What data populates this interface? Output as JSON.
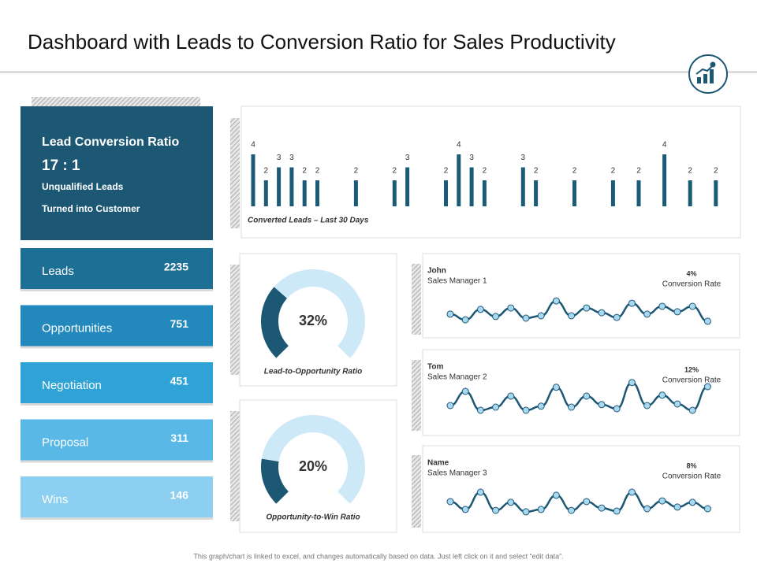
{
  "title": "Dashboard with Leads to Conversion Ratio for Sales Productivity",
  "summary": {
    "title": "Lead Conversion Ratio",
    "ratio": "17 : 1",
    "line1": "Unqualified Leads",
    "line2": "Turned into Customer",
    "color": "#1c5774"
  },
  "funnel": [
    {
      "label": "Leads",
      "value": 2235,
      "color": "#1e6f96"
    },
    {
      "label": "Opportunities",
      "value": 751,
      "color": "#2389bd"
    },
    {
      "label": "Negotiation",
      "value": 451,
      "color": "#2fa3d6"
    },
    {
      "label": "Proposal",
      "value": 311,
      "color": "#5ab8e6"
    },
    {
      "label": "Wins",
      "value": 146,
      "color": "#8ccff0"
    }
  ],
  "footer": "This graph/chart is linked to excel, and changes automatically based on data. Just left click on it and select “edit data”.",
  "chart_data": [
    {
      "type": "bar",
      "x_label": "Converted Leads – Last 30 Days",
      "color": "#1b5b78",
      "ylim": [
        0,
        4
      ],
      "values": [
        4,
        2,
        3,
        3,
        2,
        2,
        null,
        null,
        2,
        null,
        null,
        2,
        3,
        null,
        null,
        2,
        4,
        3,
        2,
        null,
        null,
        3,
        2,
        null,
        null,
        2,
        null,
        null,
        2,
        null,
        2,
        null,
        4,
        null,
        2,
        null,
        2
      ]
    },
    {
      "type": "gauge",
      "caption": "Lead-to-Opportunity Ratio",
      "value": 32,
      "value_label": "32%",
      "range": [
        0,
        100
      ],
      "color": "#1c5774",
      "track_color": "#cde8f6"
    },
    {
      "type": "gauge",
      "caption": "Opportunity-to-Win Ratio",
      "value": 20,
      "value_label": "20%",
      "range": [
        0,
        100
      ],
      "color": "#1c5774",
      "track_color": "#cde8f6"
    },
    {
      "type": "line",
      "name": "John",
      "subtitle": "Sales Manager 1",
      "stat": "4%",
      "stat_label": "Conversion Rate",
      "ylim": [
        0,
        10
      ],
      "color": "#1c5774",
      "marker_color": "#a9d9f2",
      "values": [
        3.7,
        1.3,
        5.7,
        2.7,
        6.3,
        2,
        3,
        9.3,
        3,
        6.3,
        4.3,
        2.3,
        8.3,
        3.7,
        7,
        4.7,
        7,
        0.7
      ]
    },
    {
      "type": "line",
      "name": "Tom",
      "subtitle": "Sales Manager 2",
      "stat": "12%",
      "stat_label": "Conversion Rate",
      "ylim": [
        0,
        10
      ],
      "color": "#1c5774",
      "marker_color": "#a9d9f2",
      "values": [
        2.5,
        7,
        1,
        2,
        5.5,
        1,
        2.3,
        8.3,
        2,
        5.5,
        2.8,
        1.5,
        9.8,
        2.5,
        5.8,
        3,
        1,
        8.5
      ]
    },
    {
      "type": "line",
      "name": "Name",
      "subtitle": "Sales Manager 3",
      "stat": "8%",
      "stat_label": "Conversion Rate",
      "ylim": [
        0,
        10
      ],
      "color": "#1c5774",
      "marker_color": "#a9d9f2",
      "values": [
        6,
        2.7,
        10,
        2.3,
        5.7,
        1.7,
        2.7,
        8.7,
        2.3,
        6,
        3.3,
        2,
        10,
        3,
        6.3,
        3.7,
        5.7,
        3
      ]
    }
  ]
}
